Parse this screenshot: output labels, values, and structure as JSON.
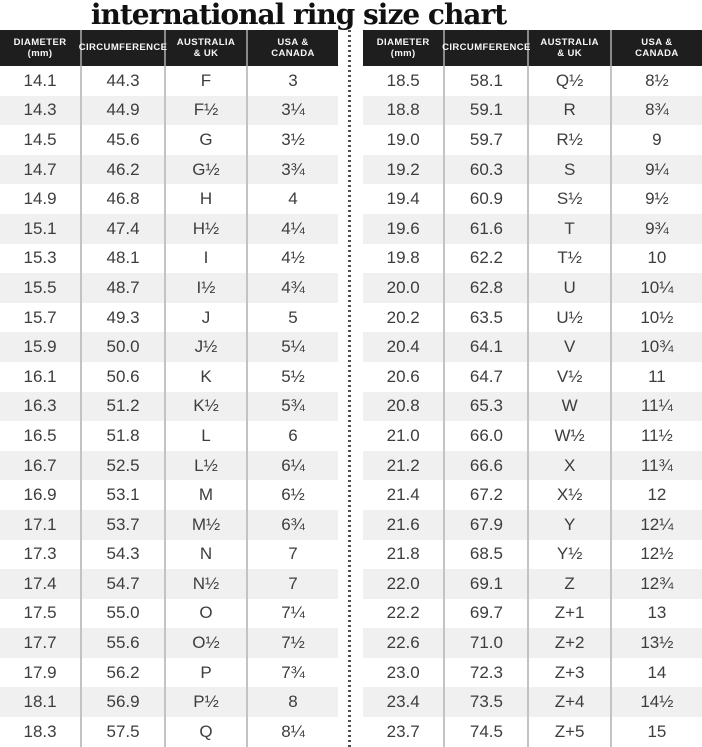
{
  "title": "international ring size chart",
  "colors": {
    "title_text": "#111111",
    "header_bg": "#1e1e1e",
    "header_text": "#f7f7f7",
    "body_text": "#3d3d3d",
    "stripe": "#f0f0f0",
    "column_line": "#c3c3c3",
    "header_line": "#8a8a8a",
    "dot_line": "#4f4f4f"
  },
  "chart_data": {
    "type": "table",
    "title": "international ring size chart",
    "columns": [
      {
        "line1": "DIAMETER",
        "line2": "(mm)"
      },
      {
        "line1": "CIRCUMFERENCE",
        "line2": ""
      },
      {
        "line1": "AUSTRALIA",
        "line2": "& UK"
      },
      {
        "line1": "USA &",
        "line2": "CANADA"
      }
    ],
    "left_table": {
      "rows": [
        [
          "14.1",
          "44.3",
          "F",
          "3"
        ],
        [
          "14.3",
          "44.9",
          "F½",
          "3¼"
        ],
        [
          "14.5",
          "45.6",
          "G",
          "3½"
        ],
        [
          "14.7",
          "46.2",
          "G½",
          "3¾"
        ],
        [
          "14.9",
          "46.8",
          "H",
          "4"
        ],
        [
          "15.1",
          "47.4",
          "H½",
          "4¼"
        ],
        [
          "15.3",
          "48.1",
          "I",
          "4½"
        ],
        [
          "15.5",
          "48.7",
          "I½",
          "4¾"
        ],
        [
          "15.7",
          "49.3",
          "J",
          "5"
        ],
        [
          "15.9",
          "50.0",
          "J½",
          "5¼"
        ],
        [
          "16.1",
          "50.6",
          "K",
          "5½"
        ],
        [
          "16.3",
          "51.2",
          "K½",
          "5¾"
        ],
        [
          "16.5",
          "51.8",
          "L",
          "6"
        ],
        [
          "16.7",
          "52.5",
          "L½",
          "6¼"
        ],
        [
          "16.9",
          "53.1",
          "M",
          "6½"
        ],
        [
          "17.1",
          "53.7",
          "M½",
          "6¾"
        ],
        [
          "17.3",
          "54.3",
          "N",
          "7"
        ],
        [
          "17.4",
          "54.7",
          "N½",
          "7"
        ],
        [
          "17.5",
          "55.0",
          "O",
          "7¼"
        ],
        [
          "17.7",
          "55.6",
          "O½",
          "7½"
        ],
        [
          "17.9",
          "56.2",
          "P",
          "7¾"
        ],
        [
          "18.1",
          "56.9",
          "P½",
          "8"
        ],
        [
          "18.3",
          "57.5",
          "Q",
          "8¼"
        ]
      ]
    },
    "right_table": {
      "rows": [
        [
          "18.5",
          "58.1",
          "Q½",
          "8½"
        ],
        [
          "18.8",
          "59.1",
          "R",
          "8¾"
        ],
        [
          "19.0",
          "59.7",
          "R½",
          "9"
        ],
        [
          "19.2",
          "60.3",
          "S",
          "9¼"
        ],
        [
          "19.4",
          "60.9",
          "S½",
          "9½"
        ],
        [
          "19.6",
          "61.6",
          "T",
          "9¾"
        ],
        [
          "19.8",
          "62.2",
          "T½",
          "10"
        ],
        [
          "20.0",
          "62.8",
          "U",
          "10¼"
        ],
        [
          "20.2",
          "63.5",
          "U½",
          "10½"
        ],
        [
          "20.4",
          "64.1",
          "V",
          "10¾"
        ],
        [
          "20.6",
          "64.7",
          "V½",
          "11"
        ],
        [
          "20.8",
          "65.3",
          "W",
          "11¼"
        ],
        [
          "21.0",
          "66.0",
          "W½",
          "11½"
        ],
        [
          "21.2",
          "66.6",
          "X",
          "11¾"
        ],
        [
          "21.4",
          "67.2",
          "X½",
          "12"
        ],
        [
          "21.6",
          "67.9",
          "Y",
          "12¼"
        ],
        [
          "21.8",
          "68.5",
          "Y½",
          "12½"
        ],
        [
          "22.0",
          "69.1",
          "Z",
          "12¾"
        ],
        [
          "22.2",
          "69.7",
          "Z+1",
          "13"
        ],
        [
          "22.6",
          "71.0",
          "Z+2",
          "13½"
        ],
        [
          "23.0",
          "72.3",
          "Z+3",
          "14"
        ],
        [
          "23.4",
          "73.5",
          "Z+4",
          "14½"
        ],
        [
          "23.7",
          "74.5",
          "Z+5",
          "15"
        ]
      ]
    }
  }
}
